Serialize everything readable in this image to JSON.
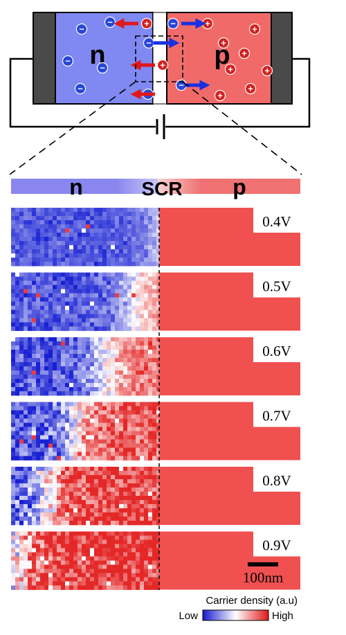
{
  "device": {
    "n_label": "n",
    "p_label": "p",
    "electron_symbol": "−",
    "hole_symbol": "+",
    "colors": {
      "n": "#8088f2",
      "p": "#f06a6a",
      "electron": "#2846d8",
      "hole": "#d42020",
      "contact": "#4a4a4a"
    }
  },
  "header": {
    "n_label": "n",
    "scr_label": "SCR",
    "p_label": "p"
  },
  "panels": [
    {
      "voltage_label": "0.4V",
      "bias": 0.4
    },
    {
      "voltage_label": "0.5V",
      "bias": 0.5
    },
    {
      "voltage_label": "0.6V",
      "bias": 0.6
    },
    {
      "voltage_label": "0.7V",
      "bias": 0.7
    },
    {
      "voltage_label": "0.8V",
      "bias": 0.8
    },
    {
      "voltage_label": "0.9V",
      "bias": 0.9
    }
  ],
  "scalebar": {
    "label": "100nm"
  },
  "colorbar": {
    "title": "Carrier density (a.u)",
    "low_label": "Low",
    "high_label": "High",
    "colors": {
      "low": "#1a1ad0",
      "mid": "#ffffff",
      "high": "#e01818"
    }
  }
}
